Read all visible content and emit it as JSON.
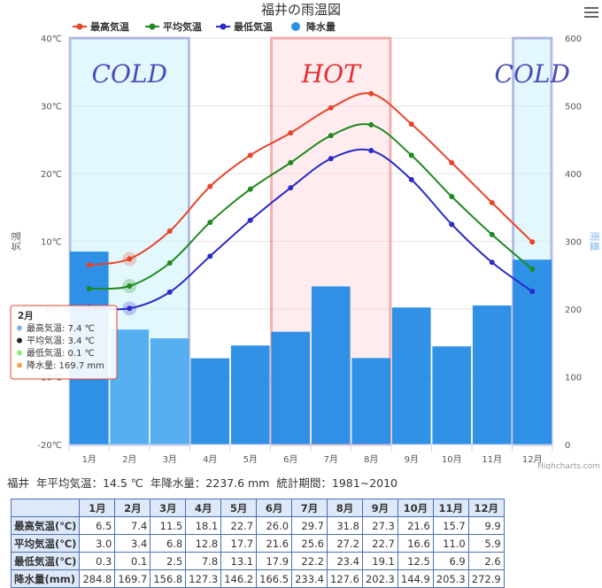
{
  "chart_data": {
    "type": "bar+line",
    "title": "福井の雨温図",
    "categories": [
      "1月",
      "2月",
      "3月",
      "4月",
      "5月",
      "6月",
      "7月",
      "8月",
      "9月",
      "10月",
      "11月",
      "12月"
    ],
    "temp_series": [
      {
        "name": "最高気温",
        "color": "#e8442a",
        "values": [
          6.5,
          7.4,
          11.5,
          18.1,
          22.7,
          26.0,
          29.7,
          31.8,
          27.3,
          21.6,
          15.7,
          9.9
        ]
      },
      {
        "name": "平均気温",
        "color": "#1f8a1f",
        "values": [
          3.0,
          3.4,
          6.8,
          12.8,
          17.7,
          21.6,
          25.6,
          27.2,
          22.7,
          16.6,
          11.0,
          5.9
        ]
      },
      {
        "name": "最低気温",
        "color": "#2a2ac8",
        "values": [
          0.3,
          0.1,
          2.5,
          7.8,
          13.1,
          17.9,
          22.2,
          23.4,
          19.1,
          12.5,
          6.9,
          2.6
        ]
      }
    ],
    "precip_series": {
      "name": "降水量",
      "color": "#2b8fe8",
      "values": [
        284.8,
        169.7,
        156.8,
        127.3,
        146.2,
        166.5,
        233.4,
        127.6,
        202.3,
        144.9,
        205.3,
        272.9
      ]
    },
    "left_axis": {
      "label": "気温",
      "min": -20,
      "max": 40,
      "ticks": [
        "-20℃",
        "-10℃",
        "0℃",
        "10℃",
        "20℃",
        "30℃",
        "40℃"
      ]
    },
    "right_axis": {
      "label": "雨量",
      "min": 0,
      "max": 600,
      "ticks": [
        "0",
        "100",
        "200",
        "300",
        "400",
        "500",
        "600"
      ]
    },
    "bands": [
      {
        "label": "COLD",
        "color": "#4a4ab8",
        "from": 0,
        "to": 2
      },
      {
        "label": "HOT",
        "color": "#e03030",
        "from": 5,
        "to": 7
      },
      {
        "label": "COLD",
        "color": "#4a4ab8",
        "from": 11,
        "to": 11
      }
    ],
    "tooltip": {
      "title": "2月",
      "lines": [
        {
          "text": "最高気温: 7.4 ℃",
          "dot": "#7cb5ec"
        },
        {
          "text": "平均気温: 3.4 ℃",
          "dot": "#222222"
        },
        {
          "text": "最低気温: 0.1 ℃",
          "dot": "#90ed7d"
        },
        {
          "text": "降水量: 169.7 mm",
          "dot": "#f7a35c"
        }
      ]
    },
    "credit": "Highcharts.com"
  },
  "summary": {
    "station": "福井",
    "avg_temp": "年平均気温：14.5 ℃",
    "total_precip": "年降水量：2237.6 mm",
    "period": "統計期間：1981~2010"
  },
  "table": {
    "months": [
      "1月",
      "2月",
      "3月",
      "4月",
      "5月",
      "6月",
      "7月",
      "8月",
      "9月",
      "10月",
      "11月",
      "12月"
    ],
    "rows": [
      {
        "label": "最高気温(℃)",
        "values": [
          "6.5",
          "7.4",
          "11.5",
          "18.1",
          "22.7",
          "26.0",
          "29.7",
          "31.8",
          "27.3",
          "21.6",
          "15.7",
          "9.9"
        ]
      },
      {
        "label": "平均気温(℃)",
        "values": [
          "3.0",
          "3.4",
          "6.8",
          "12.8",
          "17.7",
          "21.6",
          "25.6",
          "27.2",
          "22.7",
          "16.6",
          "11.0",
          "5.9"
        ]
      },
      {
        "label": "最低気温(℃)",
        "values": [
          "0.3",
          "0.1",
          "2.5",
          "7.8",
          "13.1",
          "17.9",
          "22.2",
          "23.4",
          "19.1",
          "12.5",
          "6.9",
          "2.6"
        ]
      },
      {
        "label": "降水量(mm)",
        "values": [
          "284.8",
          "169.7",
          "156.8",
          "127.3",
          "146.2",
          "166.5",
          "233.4",
          "127.6",
          "202.3",
          "144.9",
          "205.3",
          "272.9"
        ]
      }
    ]
  }
}
